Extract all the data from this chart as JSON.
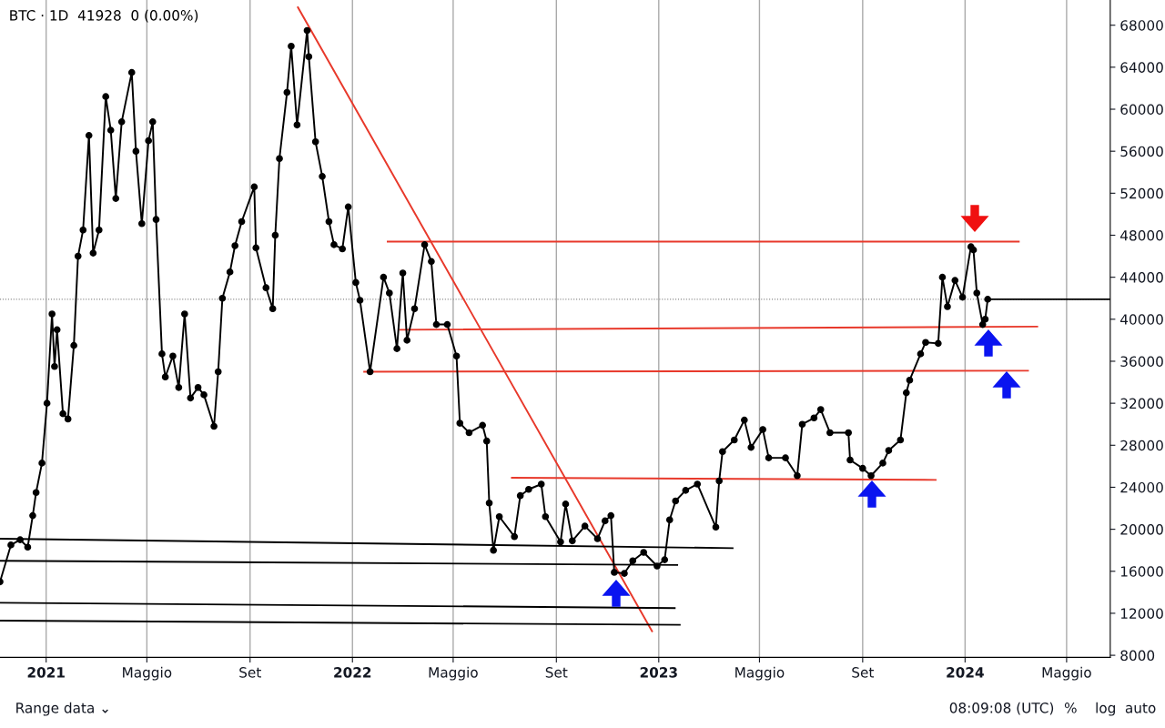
{
  "chart_data": {
    "type": "line",
    "title": "BTC · 1D  41928  0 (0.00%)",
    "annotations": [
      "Range data ⌄",
      "08:09:08 (UTC)",
      "%",
      "log",
      "auto"
    ],
    "xlim": [
      "2020-11-07",
      "2024-06-22"
    ],
    "ylim": [
      7800,
      70400
    ],
    "xticks": [
      {
        "value": "2021-01-01",
        "label": "2021"
      },
      {
        "value": "2021-05-01",
        "label": "Maggio"
      },
      {
        "value": "2021-09-01",
        "label": "Set"
      },
      {
        "value": "2022-01-01",
        "label": "2022"
      },
      {
        "value": "2022-05-01",
        "label": "Maggio"
      },
      {
        "value": "2022-09-01",
        "label": "Set"
      },
      {
        "value": "2023-01-01",
        "label": "2023"
      },
      {
        "value": "2023-05-01",
        "label": "Maggio"
      },
      {
        "value": "2023-09-01",
        "label": "Set"
      },
      {
        "value": "2024-01-01",
        "label": "2024"
      },
      {
        "value": "2024-05-01",
        "label": "Maggio"
      }
    ],
    "yticks": [
      8000,
      12000,
      16000,
      20000,
      24000,
      28000,
      32000,
      36000,
      40000,
      44000,
      48000,
      52000,
      56000,
      60000,
      64000,
      68000
    ],
    "grid": "x",
    "marker": "circle",
    "ref_lines": [
      {
        "axis": "y",
        "value": 41900,
        "color": "#888888",
        "line_style": "dotted"
      }
    ],
    "series": [
      {
        "color": "#000000",
        "x": [
          "2020-11-07",
          "2020-11-20",
          "2020-12-01",
          "2020-12-10",
          "2020-12-16",
          "2020-12-20",
          "2020-12-27",
          "2021-01-02",
          "2021-01-08",
          "2021-01-11",
          "2021-01-14",
          "2021-01-21",
          "2021-01-27",
          "2021-02-03",
          "2021-02-08",
          "2021-02-14",
          "2021-02-21",
          "2021-02-26",
          "2021-03-05",
          "2021-03-13",
          "2021-03-19",
          "2021-03-25",
          "2021-04-01",
          "2021-04-13",
          "2021-04-18",
          "2021-04-25",
          "2021-05-03",
          "2021-05-08",
          "2021-05-12",
          "2021-05-19",
          "2021-05-23",
          "2021-06-01",
          "2021-06-08",
          "2021-06-15",
          "2021-06-22",
          "2021-07-01",
          "2021-07-08",
          "2021-07-20",
          "2021-07-25",
          "2021-07-30",
          "2021-08-08",
          "2021-08-14",
          "2021-08-22",
          "2021-09-06",
          "2021-09-08",
          "2021-09-20",
          "2021-09-28",
          "2021-10-01",
          "2021-10-06",
          "2021-10-15",
          "2021-10-20",
          "2021-10-27",
          "2021-11-08",
          "2021-11-10",
          "2021-11-18",
          "2021-11-26",
          "2021-12-04",
          "2021-12-10",
          "2021-12-20",
          "2021-12-27",
          "2022-01-05",
          "2022-01-10",
          "2022-01-22",
          "2022-02-07",
          "2022-02-14",
          "2022-02-23",
          "2022-03-02",
          "2022-03-07",
          "2022-03-16",
          "2022-03-28",
          "2022-04-05",
          "2022-04-11",
          "2022-04-24",
          "2022-05-05",
          "2022-05-09",
          "2022-05-20",
          "2022-06-05",
          "2022-06-10",
          "2022-06-13",
          "2022-06-18",
          "2022-06-25",
          "2022-07-13",
          "2022-07-20",
          "2022-07-30",
          "2022-08-14",
          "2022-08-19",
          "2022-09-06",
          "2022-09-12",
          "2022-09-20",
          "2022-10-05",
          "2022-10-20",
          "2022-10-29",
          "2022-11-05",
          "2022-11-09",
          "2022-11-21",
          "2022-12-01",
          "2022-12-14",
          "2022-12-30",
          "2023-01-08",
          "2023-01-14",
          "2023-01-21",
          "2023-02-02",
          "2023-02-16",
          "2023-03-10",
          "2023-03-14",
          "2023-03-18",
          "2023-04-01",
          "2023-04-13",
          "2023-04-21",
          "2023-05-05",
          "2023-05-12",
          "2023-06-01",
          "2023-06-15",
          "2023-06-21",
          "2023-07-05",
          "2023-07-13",
          "2023-07-24",
          "2023-08-15",
          "2023-08-17",
          "2023-09-01",
          "2023-09-11",
          "2023-09-25",
          "2023-10-02",
          "2023-10-16",
          "2023-10-23",
          "2023-10-27",
          "2023-11-09",
          "2023-11-15",
          "2023-11-30",
          "2023-12-05",
          "2023-12-11",
          "2023-12-20",
          "2023-12-29",
          "2024-01-08",
          "2024-01-11",
          "2024-01-15",
          "2024-01-22",
          "2024-01-25",
          "2024-01-28"
        ],
        "values": [
          15000,
          18500,
          19000,
          18300,
          21300,
          23500,
          26300,
          32000,
          40500,
          35500,
          39000,
          31000,
          30500,
          37500,
          46000,
          48500,
          57500,
          46300,
          48500,
          61200,
          58000,
          51500,
          58800,
          63500,
          56000,
          49100,
          57000,
          58800,
          49500,
          36700,
          34500,
          36500,
          33500,
          40500,
          32500,
          33500,
          32800,
          29800,
          35000,
          42000,
          44500,
          47000,
          49300,
          52600,
          46800,
          43000,
          41000,
          48000,
          55300,
          61600,
          66000,
          58500,
          67500,
          65000,
          56900,
          53600,
          49300,
          47100,
          46700,
          50700,
          43500,
          41800,
          35000,
          44000,
          42500,
          37200,
          44400,
          38000,
          41000,
          47100,
          45500,
          39500,
          39500,
          36500,
          30100,
          29200,
          29900,
          28400,
          22500,
          18000,
          21200,
          19300,
          23200,
          23800,
          24300,
          21200,
          18800,
          22400,
          18900,
          20300,
          19100,
          20800,
          21300,
          15900,
          15800,
          17000,
          17800,
          16500,
          17100,
          20900,
          22700,
          23700,
          24300,
          20200,
          24600,
          27400,
          28500,
          30400,
          27800,
          29500,
          26800,
          26800,
          25100,
          30000,
          30600,
          31400,
          29200,
          29200,
          26600,
          25800,
          25100,
          26300,
          27500,
          28500,
          33000,
          34200,
          36700,
          37800,
          37700,
          44000,
          41200,
          43700,
          42100,
          46900,
          46600,
          42500,
          39500,
          40000,
          41900
        ]
      },
      {
        "color": "#e8392b",
        "marker": "none",
        "x": [
          "2021-10-28",
          "2022-12-24"
        ],
        "values": [
          69700,
          10300
        ]
      },
      {
        "color": "#e8392b",
        "marker": "none",
        "x": [
          "2022-02-12",
          "2024-03-05"
        ],
        "values": [
          47400,
          47400
        ]
      },
      {
        "color": "#e8392b",
        "marker": "none",
        "x": [
          "2022-02-27",
          "2024-03-27"
        ],
        "values": [
          39000,
          39300
        ]
      },
      {
        "color": "#e8392b",
        "marker": "none",
        "x": [
          "2022-01-15",
          "2024-03-16"
        ],
        "values": [
          35000,
          35100
        ]
      },
      {
        "color": "#e8392b",
        "marker": "none",
        "x": [
          "2022-07-10",
          "2023-11-27"
        ],
        "values": [
          24900,
          24700
        ]
      },
      {
        "color": "#000000",
        "marker": "none",
        "x": [
          "2020-11-07",
          "2023-03-30"
        ],
        "values": [
          19100,
          18200
        ]
      },
      {
        "color": "#000000",
        "marker": "none",
        "x": [
          "2020-11-07",
          "2023-01-23"
        ],
        "values": [
          17000,
          16600
        ]
      },
      {
        "color": "#000000",
        "marker": "none",
        "x": [
          "2020-11-07",
          "2023-01-20"
        ],
        "values": [
          13000,
          12500
        ]
      },
      {
        "color": "#000000",
        "marker": "none",
        "x": [
          "2020-11-07",
          "2023-01-26"
        ],
        "values": [
          11300,
          10900
        ]
      },
      {
        "color": "#000000",
        "marker": "none",
        "x": [
          "2024-01-28",
          "2024-06-22"
        ],
        "values": [
          41900,
          41900
        ]
      }
    ]
  }
}
